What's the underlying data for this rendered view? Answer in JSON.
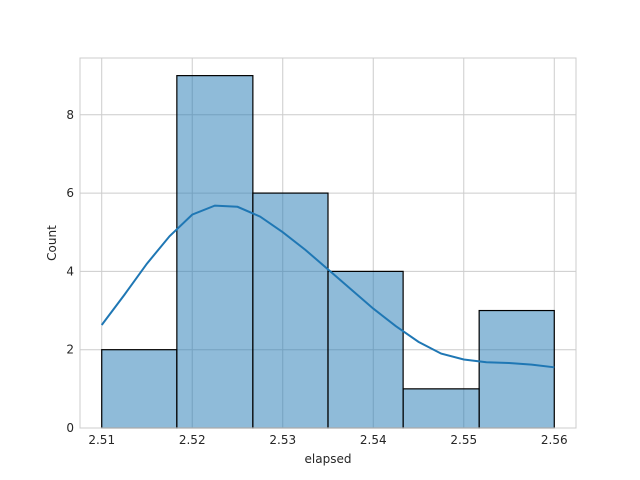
{
  "chart_data": {
    "type": "histogram",
    "title": "",
    "xlabel": "elapsed",
    "ylabel": "Count",
    "xlim": [
      2.5076,
      2.5624
    ],
    "ylim": [
      0,
      9.45
    ],
    "x_ticks": [
      "2.51",
      "2.52",
      "2.53",
      "2.54",
      "2.55",
      "2.56"
    ],
    "y_ticks": [
      "0",
      "2",
      "4",
      "6",
      "8"
    ],
    "grid": true,
    "bins": [
      {
        "start": 2.51,
        "end": 2.5183,
        "count": 2
      },
      {
        "start": 2.5183,
        "end": 2.5267,
        "count": 9
      },
      {
        "start": 2.5267,
        "end": 2.535,
        "count": 6
      },
      {
        "start": 2.535,
        "end": 2.5433,
        "count": 4
      },
      {
        "start": 2.5433,
        "end": 2.5517,
        "count": 1
      },
      {
        "start": 2.5517,
        "end": 2.56,
        "count": 3
      }
    ],
    "kde": {
      "x": [
        2.51,
        2.5125,
        2.515,
        2.5175,
        2.52,
        2.5225,
        2.525,
        2.5275,
        2.53,
        2.5325,
        2.535,
        2.5375,
        2.54,
        2.5425,
        2.545,
        2.5475,
        2.55,
        2.5525,
        2.555,
        2.5575,
        2.56
      ],
      "y": [
        2.63,
        3.4,
        4.2,
        4.9,
        5.45,
        5.68,
        5.65,
        5.4,
        5.0,
        4.55,
        4.05,
        3.55,
        3.05,
        2.6,
        2.2,
        1.9,
        1.75,
        1.68,
        1.66,
        1.62,
        1.55
      ]
    },
    "colors": {
      "bar": "#1f77b4",
      "kde": "#1f77b4",
      "grid": "#cccccc",
      "edge": "#000000"
    }
  }
}
